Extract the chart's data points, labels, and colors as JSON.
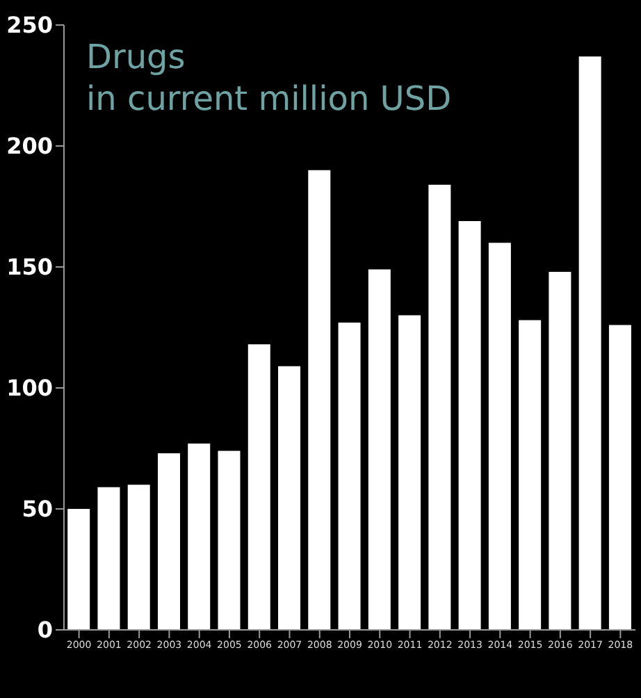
{
  "chart_data": {
    "type": "bar",
    "title": "Drugs",
    "subtitle": "in current million USD",
    "categories": [
      "2000",
      "2001",
      "2002",
      "2003",
      "2004",
      "2005",
      "2006",
      "2007",
      "2008",
      "2009",
      "2010",
      "2011",
      "2012",
      "2013",
      "2014",
      "2015",
      "2016",
      "2017",
      "2018"
    ],
    "values": [
      50,
      59,
      60,
      73,
      77,
      74,
      118,
      109,
      190,
      127,
      149,
      130,
      184,
      169,
      160,
      128,
      148,
      237,
      126
    ],
    "color": "#ffffff",
    "ylim": [
      0,
      250
    ],
    "yticks": [
      0,
      50,
      100,
      150,
      200,
      250
    ],
    "grid": false
  }
}
